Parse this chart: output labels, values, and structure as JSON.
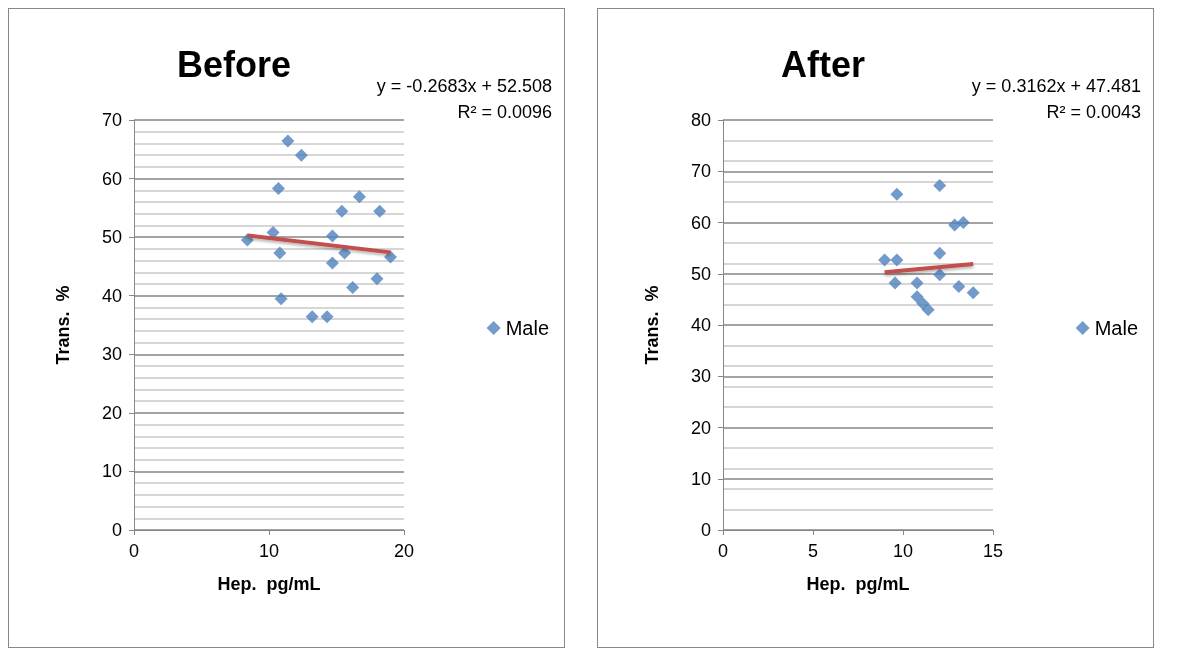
{
  "chart_data": [
    {
      "type": "scatter",
      "title": "Before",
      "xlabel": "Hep.  pg/mL",
      "ylabel": "Trans.  %",
      "annotations": [
        "y = -0.2683x + 52.508",
        "R² = 0.0096"
      ],
      "xlim": [
        0,
        20
      ],
      "xticks": [
        0,
        10,
        20
      ],
      "ylim": [
        0,
        70
      ],
      "yticks": [
        0,
        10,
        20,
        30,
        40,
        50,
        60,
        70
      ],
      "grid": "y",
      "legend": "right",
      "marker": "diamond",
      "series": [
        {
          "name": "Male",
          "color": "#4f81bd",
          "x": [
            11.4,
            12.4,
            10.7,
            8.4,
            10.3,
            10.8,
            15.4,
            16.7,
            18.2,
            14.7,
            15.6,
            14.7,
            19.0,
            18.0,
            16.2,
            10.9,
            13.2,
            14.3
          ],
          "values": [
            66.4,
            64.0,
            58.3,
            49.5,
            50.8,
            47.3,
            54.4,
            56.9,
            54.4,
            50.2,
            47.3,
            45.6,
            46.6,
            42.9,
            41.4,
            39.5,
            36.4,
            36.4
          ]
        },
        {
          "type": "line",
          "color": "#c0504d",
          "marker": "none",
          "x": [
            8.4,
            19.0
          ],
          "values": [
            50.3,
            47.4
          ]
        }
      ]
    },
    {
      "type": "scatter",
      "title": "After",
      "xlabel": "Hep.  pg/mL",
      "ylabel": "Trans.  %",
      "annotations": [
        "y = 0.3162x + 47.481",
        "R² = 0.0043"
      ],
      "xlim": [
        0,
        15
      ],
      "xticks": [
        0,
        5,
        10,
        15
      ],
      "ylim": [
        0,
        80
      ],
      "yticks": [
        0,
        10,
        20,
        30,
        40,
        50,
        60,
        70,
        80
      ],
      "grid": "y",
      "legend": "right",
      "marker": "diamond",
      "series": [
        {
          "name": "Male",
          "color": "#4f81bd",
          "x": [
            9.66,
            12.04,
            12.87,
            13.35,
            8.98,
            9.66,
            12.04,
            9.56,
            12.04,
            10.78,
            10.78,
            11.1,
            11.4,
            13.1,
            13.9
          ],
          "values": [
            65.5,
            67.2,
            59.5,
            60.0,
            52.7,
            52.7,
            54.0,
            48.2,
            49.8,
            48.2,
            45.5,
            44.2,
            43.0,
            47.5,
            46.3
          ]
        },
        {
          "type": "line",
          "color": "#c0504d",
          "marker": "none",
          "x": [
            8.98,
            13.9
          ],
          "values": [
            50.3,
            51.9
          ]
        }
      ]
    }
  ]
}
